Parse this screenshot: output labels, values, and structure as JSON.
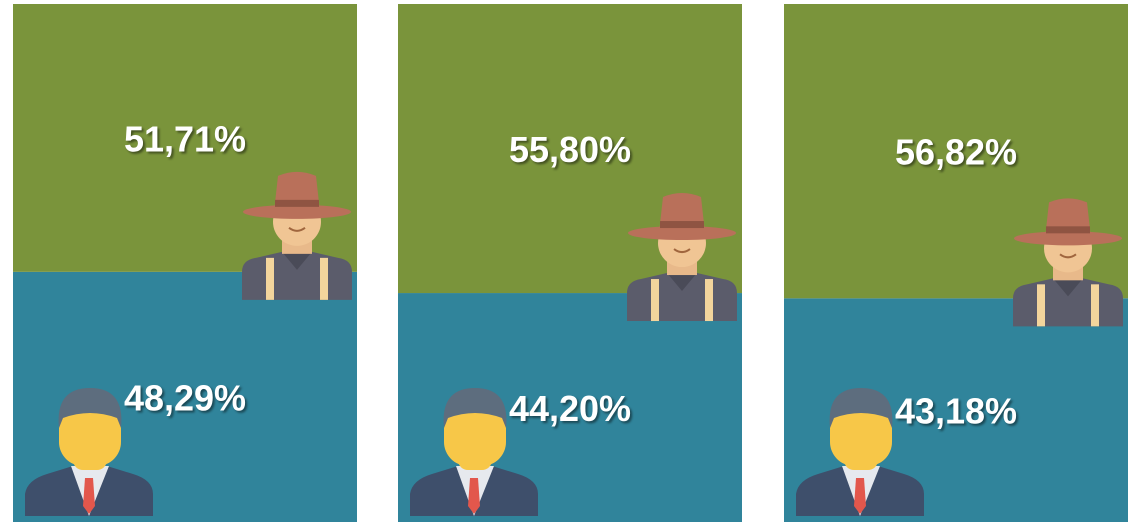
{
  "chart_data": {
    "type": "bar",
    "stacked": true,
    "categories": [
      null,
      null,
      null
    ],
    "ylim": [
      0,
      100
    ],
    "series": [
      {
        "color": "#30849b",
        "values": [
          48.29,
          44.2,
          43.18
        ],
        "value_labels": [
          "48,29%",
          "44,20%",
          "43,18%"
        ]
      },
      {
        "color": "#7a943b",
        "values": [
          51.71,
          55.8,
          56.82
        ],
        "value_labels": [
          "51,71%",
          "55,80%",
          "56,82%"
        ]
      }
    ]
  }
}
